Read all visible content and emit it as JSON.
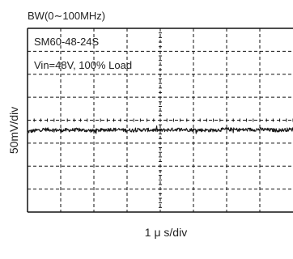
{
  "chart_data": {
    "type": "line",
    "title": "BW(0∼100MHz)",
    "annotations": [
      "SM60-48-24S",
      "Vin=48V, 100% Load"
    ],
    "xlabel": "1 μ s/div",
    "ylabel": "50mV/div",
    "x_divisions": 8,
    "y_divisions": 8,
    "grid": true,
    "series": [
      {
        "x_unit": "μs",
        "y_unit": "mV",
        "x": [
          0,
          0.5,
          1,
          1.5,
          2,
          2.5,
          3,
          3.5,
          4,
          4.5,
          5,
          5.5,
          6,
          6.5,
          7,
          7.5,
          8
        ],
        "values": [
          -25,
          -20,
          -22,
          -21,
          -23,
          -20,
          -22,
          -21,
          -22,
          -20,
          -21,
          -22,
          -20,
          -21,
          -20,
          -22,
          -20
        ],
        "noise_pp_mV": 8
      }
    ],
    "colors": {
      "trace": "#1a1a1a",
      "grid": "#111111",
      "background": "#ffffff"
    }
  }
}
